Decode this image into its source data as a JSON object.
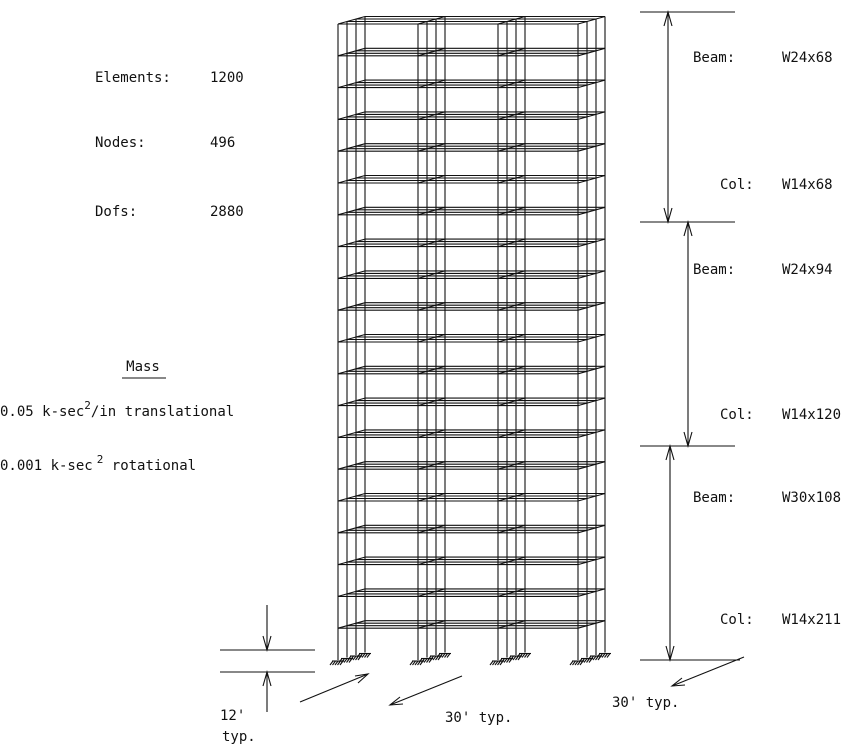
{
  "stats": [
    {
      "label": "Elements:",
      "value": "1200"
    },
    {
      "label": "Nodes:",
      "value": "496"
    },
    {
      "label": "Dofs:",
      "value": "2880"
    }
  ],
  "mass": {
    "title": "Mass",
    "translational": {
      "prefix": "0.05 k-sec",
      "sup": "2",
      "suffix": "/in translational"
    },
    "rotational": {
      "prefix": "0.001 k-sec",
      "sup": "2",
      "suffix": " rotational"
    }
  },
  "sections": [
    {
      "label": "Beam:",
      "value": "W24x68"
    },
    {
      "label": "Col:",
      "value": "W14x68"
    },
    {
      "label": "Beam:",
      "value": "W24x94"
    },
    {
      "label": "Col:",
      "value": "W14x120"
    },
    {
      "label": "Beam:",
      "value": "W30x108"
    },
    {
      "label": "Col:",
      "value": "W14x211"
    }
  ],
  "dimensions": {
    "story_height": "12'",
    "story_height_note": "typ.",
    "bay_x": "30' typ.",
    "bay_z": "30' typ."
  }
}
